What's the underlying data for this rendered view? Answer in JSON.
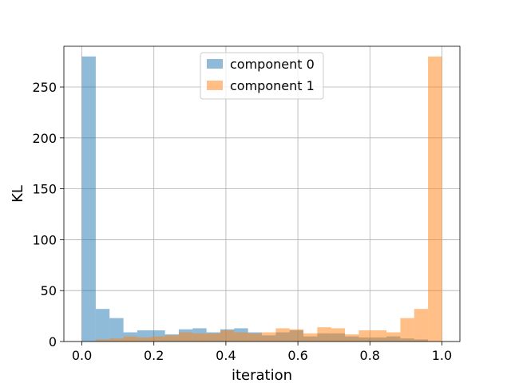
{
  "chart_data": {
    "type": "histogram",
    "title": "",
    "xlabel": "iteration",
    "ylabel": "KL",
    "xlim": [
      -0.05,
      1.05
    ],
    "ylim": [
      0,
      290
    ],
    "grid": true,
    "legend_position": "top-center",
    "x_ticks": [
      0.0,
      0.2,
      0.4,
      0.6,
      0.8,
      1.0
    ],
    "x_tick_labels": [
      "0.0",
      "0.2",
      "0.4",
      "0.6",
      "0.8",
      "1.0"
    ],
    "y_ticks": [
      0,
      50,
      100,
      150,
      200,
      250
    ],
    "y_tick_labels": [
      "0",
      "50",
      "100",
      "150",
      "200",
      "250"
    ],
    "bin_edges": [
      0.0,
      0.0385,
      0.0769,
      0.1154,
      0.1538,
      0.1923,
      0.2308,
      0.2692,
      0.3077,
      0.3462,
      0.3846,
      0.4231,
      0.4615,
      0.5,
      0.5385,
      0.5769,
      0.6154,
      0.6538,
      0.6923,
      0.7308,
      0.7692,
      0.8077,
      0.8462,
      0.8846,
      0.9231,
      0.9615,
      1.0
    ],
    "series": [
      {
        "name": "component 0",
        "color": "#1f77b4",
        "opacity": 0.5,
        "values": [
          280,
          32,
          23,
          9,
          11,
          11,
          7,
          12,
          13,
          9,
          12,
          13,
          9,
          6,
          9,
          11,
          5,
          8,
          8,
          5,
          4,
          4,
          5,
          3,
          2,
          0
        ]
      },
      {
        "name": "component 1",
        "color": "#ff7f0e",
        "opacity": 0.5,
        "values": [
          0,
          2,
          3,
          5,
          4,
          5,
          6,
          9,
          8,
          8,
          11,
          9,
          8,
          9,
          13,
          12,
          8,
          14,
          13,
          7,
          11,
          11,
          9,
          23,
          32,
          280
        ]
      }
    ]
  }
}
